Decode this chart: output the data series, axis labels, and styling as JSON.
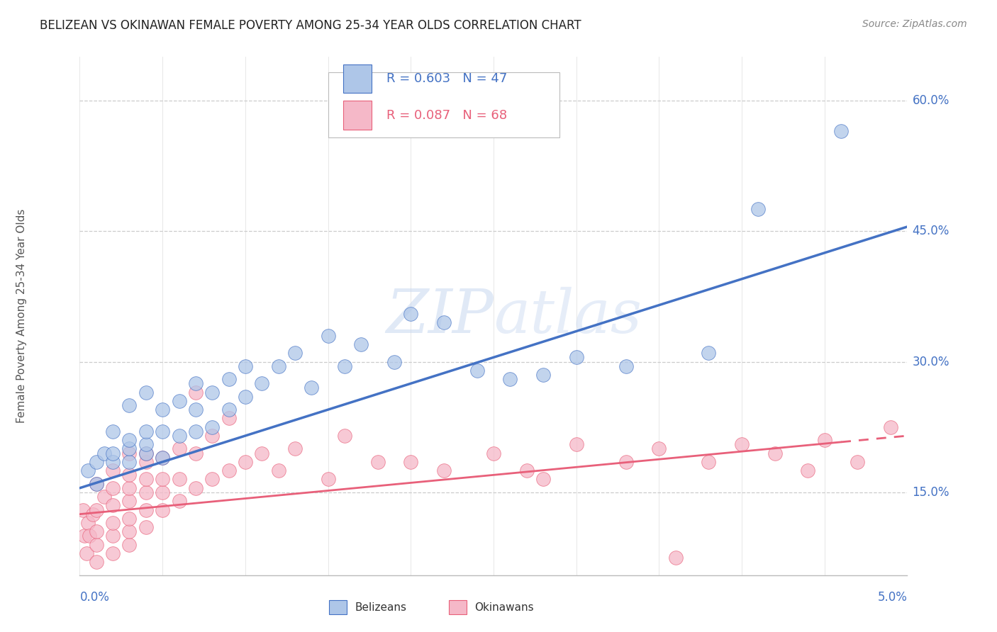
{
  "title": "BELIZEAN VS OKINAWAN FEMALE POVERTY AMONG 25-34 YEAR OLDS CORRELATION CHART",
  "source_text": "Source: ZipAtlas.com",
  "ylabel_label": "Female Poverty Among 25-34 Year Olds",
  "watermark": "ZIPatlas",
  "belizean_R": 0.603,
  "belizean_N": 47,
  "okinawan_R": 0.087,
  "okinawan_N": 68,
  "belizean_color": "#aec6e8",
  "okinawan_color": "#f5b8c8",
  "belizean_line_color": "#4472c4",
  "okinawan_line_color": "#e8607a",
  "background_color": "#ffffff",
  "axis_label_color": "#4472c4",
  "grid_color": "#cccccc",
  "xlim": [
    0.0,
    0.05
  ],
  "ylim": [
    0.055,
    0.65
  ],
  "ytick_vals": [
    0.15,
    0.3,
    0.45,
    0.6
  ],
  "ytick_labels": [
    "15.0%",
    "30.0%",
    "45.0%",
    "60.0%"
  ],
  "belizean_line_y0": 0.155,
  "belizean_line_y1": 0.455,
  "okinawan_line_y0": 0.125,
  "okinawan_line_y1": 0.215,
  "okinawan_line_solid_end": 0.046,
  "belizean_scatter_x": [
    0.0005,
    0.001,
    0.001,
    0.0015,
    0.002,
    0.002,
    0.002,
    0.003,
    0.003,
    0.003,
    0.003,
    0.004,
    0.004,
    0.004,
    0.004,
    0.005,
    0.005,
    0.005,
    0.006,
    0.006,
    0.007,
    0.007,
    0.007,
    0.008,
    0.008,
    0.009,
    0.009,
    0.01,
    0.01,
    0.011,
    0.012,
    0.013,
    0.014,
    0.015,
    0.016,
    0.017,
    0.019,
    0.02,
    0.022,
    0.024,
    0.026,
    0.028,
    0.03,
    0.033,
    0.038,
    0.041,
    0.046
  ],
  "belizean_scatter_y": [
    0.175,
    0.16,
    0.185,
    0.195,
    0.185,
    0.195,
    0.22,
    0.185,
    0.2,
    0.21,
    0.25,
    0.195,
    0.205,
    0.22,
    0.265,
    0.19,
    0.22,
    0.245,
    0.215,
    0.255,
    0.22,
    0.245,
    0.275,
    0.225,
    0.265,
    0.245,
    0.28,
    0.26,
    0.295,
    0.275,
    0.295,
    0.31,
    0.27,
    0.33,
    0.295,
    0.32,
    0.3,
    0.355,
    0.345,
    0.29,
    0.28,
    0.285,
    0.305,
    0.295,
    0.31,
    0.475,
    0.565
  ],
  "okinawan_scatter_x": [
    0.0002,
    0.0003,
    0.0004,
    0.0005,
    0.0006,
    0.0008,
    0.001,
    0.001,
    0.001,
    0.001,
    0.001,
    0.0015,
    0.002,
    0.002,
    0.002,
    0.002,
    0.002,
    0.002,
    0.003,
    0.003,
    0.003,
    0.003,
    0.003,
    0.003,
    0.003,
    0.004,
    0.004,
    0.004,
    0.004,
    0.004,
    0.004,
    0.005,
    0.005,
    0.005,
    0.005,
    0.006,
    0.006,
    0.006,
    0.007,
    0.007,
    0.007,
    0.008,
    0.008,
    0.009,
    0.009,
    0.01,
    0.011,
    0.012,
    0.013,
    0.015,
    0.016,
    0.018,
    0.02,
    0.022,
    0.025,
    0.027,
    0.028,
    0.03,
    0.033,
    0.035,
    0.036,
    0.038,
    0.04,
    0.042,
    0.044,
    0.045,
    0.047,
    0.049
  ],
  "okinawan_scatter_y": [
    0.13,
    0.1,
    0.08,
    0.115,
    0.1,
    0.125,
    0.07,
    0.09,
    0.105,
    0.13,
    0.16,
    0.145,
    0.08,
    0.1,
    0.115,
    0.135,
    0.155,
    0.175,
    0.09,
    0.105,
    0.12,
    0.14,
    0.155,
    0.17,
    0.195,
    0.11,
    0.13,
    0.15,
    0.165,
    0.185,
    0.195,
    0.13,
    0.15,
    0.165,
    0.19,
    0.14,
    0.165,
    0.2,
    0.155,
    0.195,
    0.265,
    0.165,
    0.215,
    0.175,
    0.235,
    0.185,
    0.195,
    0.175,
    0.2,
    0.165,
    0.215,
    0.185,
    0.185,
    0.175,
    0.195,
    0.175,
    0.165,
    0.205,
    0.185,
    0.2,
    0.075,
    0.185,
    0.205,
    0.195,
    0.175,
    0.21,
    0.185,
    0.225
  ]
}
